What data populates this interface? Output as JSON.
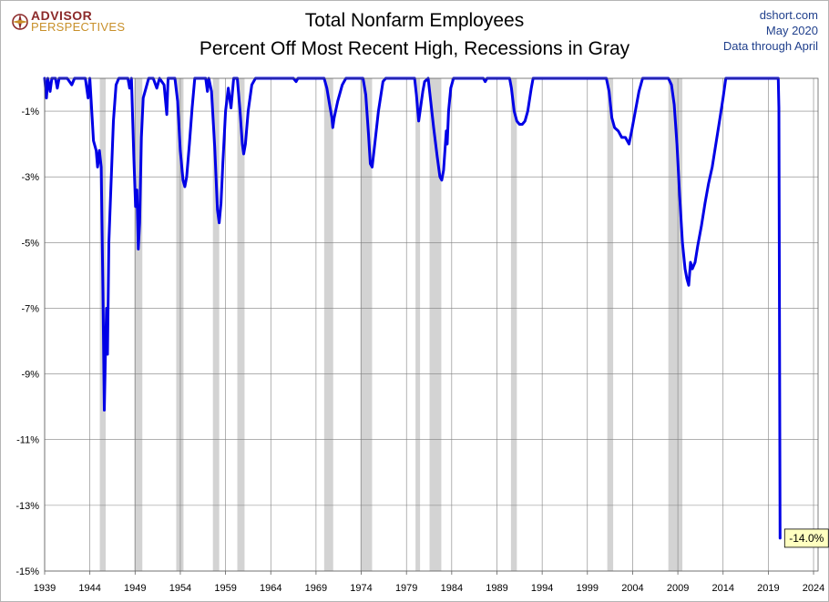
{
  "header": {
    "logo_line1": "ADVISOR",
    "logo_line2": "PERSPECTIVES",
    "title_line1": "Total Nonfarm Employees",
    "title_line2": "Percent Off Most Recent High, Recessions in Gray",
    "source": "dshort.com",
    "date": "May 2020",
    "data_note": "Data through April"
  },
  "colors": {
    "line": "#0000e6",
    "recession": "#d3d3d3",
    "grid": "#808080",
    "callout_bg": "#ffffc0"
  },
  "chart_data": {
    "type": "line",
    "title": "Total Nonfarm Employees — Percent Off Most Recent High, Recessions in Gray",
    "xlabel": "",
    "ylabel": "",
    "xlim": [
      1939,
      2024.5
    ],
    "ylim": [
      -15,
      0
    ],
    "x_ticks": [
      1939,
      1944,
      1949,
      1954,
      1959,
      1964,
      1969,
      1974,
      1979,
      1984,
      1989,
      1994,
      1999,
      2004,
      2009,
      2014,
      2019,
      2024
    ],
    "y_ticks": [
      -1,
      -3,
      -5,
      -7,
      -9,
      -11,
      -13,
      -15
    ],
    "y_tick_labels": [
      "-1%",
      "-3%",
      "-5%",
      "-7%",
      "-9%",
      "-11%",
      "-13%",
      "-15%"
    ],
    "grid": true,
    "recessions": [
      [
        1945.1,
        1945.75
      ],
      [
        1948.9,
        1949.8
      ],
      [
        1953.55,
        1954.35
      ],
      [
        1957.6,
        1958.3
      ],
      [
        1960.3,
        1961.1
      ],
      [
        1969.9,
        1970.9
      ],
      [
        1973.9,
        1975.2
      ],
      [
        1980.0,
        1980.5
      ],
      [
        1981.55,
        1982.85
      ],
      [
        1990.55,
        1991.2
      ],
      [
        2001.2,
        2001.85
      ],
      [
        2007.95,
        2009.5
      ]
    ],
    "series": [
      {
        "values": [
          [
            1939.0,
            0
          ],
          [
            1939.2,
            -0.6
          ],
          [
            1939.35,
            0
          ],
          [
            1939.6,
            -0.4
          ],
          [
            1939.8,
            0
          ],
          [
            1940.2,
            0
          ],
          [
            1940.4,
            -0.3
          ],
          [
            1940.6,
            0
          ],
          [
            1941.5,
            0
          ],
          [
            1942.0,
            -0.2
          ],
          [
            1942.3,
            0
          ],
          [
            1943.5,
            0
          ],
          [
            1943.8,
            -0.6
          ],
          [
            1944.0,
            0
          ],
          [
            1944.15,
            -0.7
          ],
          [
            1944.4,
            -1.9
          ],
          [
            1944.7,
            -2.2
          ],
          [
            1944.85,
            -2.7
          ],
          [
            1945.05,
            -2.2
          ],
          [
            1945.25,
            -2.7
          ],
          [
            1945.45,
            -6.5
          ],
          [
            1945.6,
            -10.1
          ],
          [
            1945.75,
            -8.0
          ],
          [
            1945.85,
            -7.0
          ],
          [
            1945.95,
            -8.4
          ],
          [
            1946.1,
            -5.0
          ],
          [
            1946.3,
            -3.5
          ],
          [
            1946.6,
            -1.3
          ],
          [
            1946.9,
            -0.2
          ],
          [
            1947.2,
            0
          ],
          [
            1948.2,
            0
          ],
          [
            1948.4,
            -0.3
          ],
          [
            1948.6,
            0
          ],
          [
            1948.85,
            -2.3
          ],
          [
            1949.05,
            -3.9
          ],
          [
            1949.2,
            -3.4
          ],
          [
            1949.35,
            -5.2
          ],
          [
            1949.5,
            -4.4
          ],
          [
            1949.7,
            -1.8
          ],
          [
            1949.9,
            -0.6
          ],
          [
            1950.2,
            -0.3
          ],
          [
            1950.5,
            0
          ],
          [
            1951.0,
            0
          ],
          [
            1951.4,
            -0.3
          ],
          [
            1951.7,
            0
          ],
          [
            1952.2,
            -0.2
          ],
          [
            1952.5,
            -1.1
          ],
          [
            1952.65,
            0
          ],
          [
            1953.4,
            0
          ],
          [
            1953.7,
            -0.7
          ],
          [
            1954.0,
            -2.2
          ],
          [
            1954.3,
            -3.1
          ],
          [
            1954.5,
            -3.3
          ],
          [
            1954.7,
            -3.0
          ],
          [
            1955.0,
            -2.0
          ],
          [
            1955.3,
            -0.9
          ],
          [
            1955.6,
            0
          ],
          [
            1956.8,
            0
          ],
          [
            1957.0,
            -0.4
          ],
          [
            1957.15,
            0
          ],
          [
            1957.45,
            -0.4
          ],
          [
            1957.8,
            -2.1
          ],
          [
            1958.1,
            -4.0
          ],
          [
            1958.3,
            -4.4
          ],
          [
            1958.5,
            -3.8
          ],
          [
            1958.7,
            -2.6
          ],
          [
            1959.0,
            -1.0
          ],
          [
            1959.3,
            -0.3
          ],
          [
            1959.6,
            -0.9
          ],
          [
            1959.9,
            0
          ],
          [
            1960.3,
            0
          ],
          [
            1960.6,
            -1.0
          ],
          [
            1960.85,
            -2.0
          ],
          [
            1961.0,
            -2.3
          ],
          [
            1961.2,
            -2.0
          ],
          [
            1961.5,
            -1.0
          ],
          [
            1961.9,
            -0.2
          ],
          [
            1962.3,
            0
          ],
          [
            1966.5,
            0
          ],
          [
            1966.8,
            -0.1
          ],
          [
            1967.0,
            0
          ],
          [
            1969.9,
            0
          ],
          [
            1970.2,
            -0.3
          ],
          [
            1970.5,
            -0.8
          ],
          [
            1970.75,
            -1.2
          ],
          [
            1970.85,
            -1.5
          ],
          [
            1971.0,
            -1.2
          ],
          [
            1971.4,
            -0.7
          ],
          [
            1971.9,
            -0.2
          ],
          [
            1972.3,
            0
          ],
          [
            1974.2,
            0
          ],
          [
            1974.5,
            -0.5
          ],
          [
            1974.8,
            -1.7
          ],
          [
            1975.0,
            -2.6
          ],
          [
            1975.2,
            -2.7
          ],
          [
            1975.5,
            -2.0
          ],
          [
            1975.9,
            -1.0
          ],
          [
            1976.4,
            -0.1
          ],
          [
            1976.7,
            0
          ],
          [
            1979.9,
            0
          ],
          [
            1980.1,
            -0.5
          ],
          [
            1980.35,
            -1.3
          ],
          [
            1980.55,
            -0.9
          ],
          [
            1980.8,
            -0.4
          ],
          [
            1981.0,
            -0.1
          ],
          [
            1981.4,
            0
          ],
          [
            1981.6,
            -0.5
          ],
          [
            1982.0,
            -1.5
          ],
          [
            1982.4,
            -2.4
          ],
          [
            1982.7,
            -3.0
          ],
          [
            1982.9,
            -3.1
          ],
          [
            1983.1,
            -2.8
          ],
          [
            1983.4,
            -1.6
          ],
          [
            1983.5,
            -2.0
          ],
          [
            1983.65,
            -1.0
          ],
          [
            1983.9,
            -0.3
          ],
          [
            1984.2,
            0
          ],
          [
            1987.5,
            0
          ],
          [
            1987.7,
            -0.1
          ],
          [
            1987.9,
            0
          ],
          [
            1990.4,
            0
          ],
          [
            1990.6,
            -0.3
          ],
          [
            1990.9,
            -1.0
          ],
          [
            1991.2,
            -1.3
          ],
          [
            1991.5,
            -1.4
          ],
          [
            1991.8,
            -1.4
          ],
          [
            1992.1,
            -1.3
          ],
          [
            1992.4,
            -1.0
          ],
          [
            1992.8,
            -0.3
          ],
          [
            1993.0,
            0
          ],
          [
            2001.1,
            0
          ],
          [
            2001.4,
            -0.4
          ],
          [
            2001.7,
            -1.2
          ],
          [
            2002.0,
            -1.5
          ],
          [
            2002.4,
            -1.6
          ],
          [
            2002.8,
            -1.8
          ],
          [
            2003.2,
            -1.8
          ],
          [
            2003.6,
            -2.0
          ],
          [
            2003.9,
            -1.6
          ],
          [
            2004.3,
            -1.0
          ],
          [
            2004.7,
            -0.4
          ],
          [
            2005.1,
            0
          ],
          [
            2007.95,
            0
          ],
          [
            2008.3,
            -0.2
          ],
          [
            2008.6,
            -0.8
          ],
          [
            2008.9,
            -2.0
          ],
          [
            2009.2,
            -3.6
          ],
          [
            2009.5,
            -5.0
          ],
          [
            2009.8,
            -5.8
          ],
          [
            2010.0,
            -6.1
          ],
          [
            2010.2,
            -6.3
          ],
          [
            2010.4,
            -5.6
          ],
          [
            2010.6,
            -5.8
          ],
          [
            2010.9,
            -5.6
          ],
          [
            2011.2,
            -5.1
          ],
          [
            2011.6,
            -4.5
          ],
          [
            2012.0,
            -3.8
          ],
          [
            2012.4,
            -3.2
          ],
          [
            2012.8,
            -2.7
          ],
          [
            2013.2,
            -2.0
          ],
          [
            2013.6,
            -1.3
          ],
          [
            2014.0,
            -0.6
          ],
          [
            2014.3,
            0
          ],
          [
            2020.1,
            0
          ],
          [
            2020.17,
            -0.9
          ],
          [
            2020.3,
            -14.0
          ]
        ]
      }
    ],
    "annotations": [
      {
        "text": "-14.0%",
        "x": 2020.3,
        "y": -14.0
      }
    ]
  }
}
